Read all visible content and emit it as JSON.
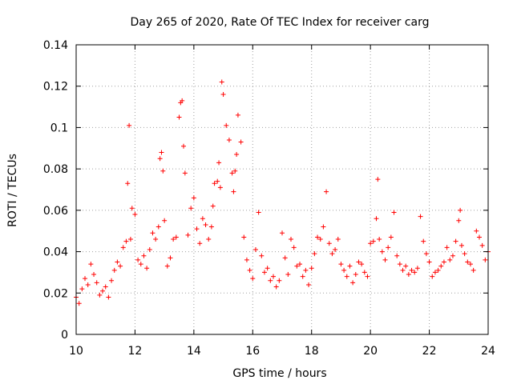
{
  "chart_data": {
    "type": "scatter",
    "title": "Day 265 of 2020, Rate Of TEC Index for receiver carg",
    "xlabel": "GPS time / hours",
    "ylabel": "ROTI / TECUs",
    "xlim": [
      10,
      24
    ],
    "ylim": [
      0,
      0.14
    ],
    "x_ticks": [
      "10",
      "12",
      "14",
      "16",
      "18",
      "20",
      "22",
      "24"
    ],
    "y_ticks": [
      "0",
      "0.02",
      "0.04",
      "0.06",
      "0.08",
      "0.1",
      "0.12",
      "0.14"
    ],
    "grid": true,
    "marker": "+",
    "color": "#ff0000",
    "series": [
      {
        "name": "ROTI",
        "x": [
          10.0,
          10.1,
          10.2,
          10.3,
          10.4,
          10.5,
          10.6,
          10.7,
          10.8,
          10.9,
          11.0,
          11.1,
          11.2,
          11.3,
          11.4,
          11.5,
          11.6,
          11.7,
          11.75,
          11.8,
          11.85,
          11.9,
          12.0,
          12.1,
          12.2,
          12.3,
          12.4,
          12.5,
          12.6,
          12.7,
          12.8,
          12.85,
          12.9,
          12.95,
          13.0,
          13.1,
          13.2,
          13.3,
          13.4,
          13.5,
          13.55,
          13.6,
          13.65,
          13.7,
          13.8,
          13.9,
          14.0,
          14.1,
          14.2,
          14.3,
          14.4,
          14.5,
          14.6,
          14.65,
          14.7,
          14.8,
          14.85,
          14.9,
          14.95,
          15.0,
          15.1,
          15.2,
          15.3,
          15.35,
          15.4,
          15.45,
          15.5,
          15.6,
          15.7,
          15.8,
          15.9,
          16.0,
          16.1,
          16.2,
          16.3,
          16.4,
          16.5,
          16.6,
          16.7,
          16.8,
          16.9,
          17.0,
          17.1,
          17.2,
          17.3,
          17.4,
          17.5,
          17.6,
          17.7,
          17.8,
          17.9,
          18.0,
          18.1,
          18.2,
          18.3,
          18.4,
          18.5,
          18.6,
          18.7,
          18.8,
          18.9,
          19.0,
          19.1,
          19.2,
          19.3,
          19.4,
          19.5,
          19.6,
          19.7,
          19.8,
          19.9,
          20.0,
          20.1,
          20.2,
          20.25,
          20.3,
          20.4,
          20.5,
          20.6,
          20.7,
          20.8,
          20.9,
          21.0,
          21.1,
          21.2,
          21.3,
          21.4,
          21.5,
          21.6,
          21.7,
          21.8,
          21.9,
          22.0,
          22.1,
          22.2,
          22.3,
          22.4,
          22.5,
          22.6,
          22.7,
          22.8,
          22.9,
          23.0,
          23.05,
          23.1,
          23.2,
          23.3,
          23.4,
          23.5,
          23.6,
          23.7,
          23.8,
          23.9,
          24.0
        ],
        "y": [
          0.018,
          0.015,
          0.022,
          0.027,
          0.024,
          0.034,
          0.029,
          0.025,
          0.019,
          0.021,
          0.023,
          0.018,
          0.026,
          0.031,
          0.035,
          0.033,
          0.042,
          0.045,
          0.073,
          0.101,
          0.046,
          0.061,
          0.058,
          0.036,
          0.034,
          0.038,
          0.032,
          0.041,
          0.049,
          0.046,
          0.052,
          0.085,
          0.088,
          0.079,
          0.055,
          0.033,
          0.037,
          0.046,
          0.047,
          0.105,
          0.112,
          0.113,
          0.091,
          0.078,
          0.048,
          0.061,
          0.066,
          0.051,
          0.044,
          0.056,
          0.053,
          0.046,
          0.052,
          0.062,
          0.073,
          0.074,
          0.083,
          0.071,
          0.122,
          0.116,
          0.101,
          0.094,
          0.078,
          0.069,
          0.079,
          0.087,
          0.106,
          0.093,
          0.047,
          0.036,
          0.031,
          0.027,
          0.041,
          0.059,
          0.038,
          0.03,
          0.032,
          0.026,
          0.028,
          0.023,
          0.026,
          0.049,
          0.037,
          0.029,
          0.046,
          0.042,
          0.033,
          0.034,
          0.028,
          0.031,
          0.024,
          0.032,
          0.039,
          0.047,
          0.046,
          0.052,
          0.069,
          0.044,
          0.039,
          0.041,
          0.046,
          0.034,
          0.031,
          0.028,
          0.033,
          0.025,
          0.029,
          0.035,
          0.034,
          0.03,
          0.028,
          0.044,
          0.045,
          0.056,
          0.075,
          0.046,
          0.04,
          0.036,
          0.042,
          0.047,
          0.059,
          0.038,
          0.034,
          0.031,
          0.033,
          0.029,
          0.031,
          0.03,
          0.032,
          0.057,
          0.045,
          0.039,
          0.035,
          0.028,
          0.03,
          0.031,
          0.033,
          0.035,
          0.042,
          0.036,
          0.038,
          0.045,
          0.055,
          0.06,
          0.043,
          0.039,
          0.035,
          0.034,
          0.031,
          0.05,
          0.047,
          0.043,
          0.036,
          0.04
        ]
      }
    ]
  }
}
